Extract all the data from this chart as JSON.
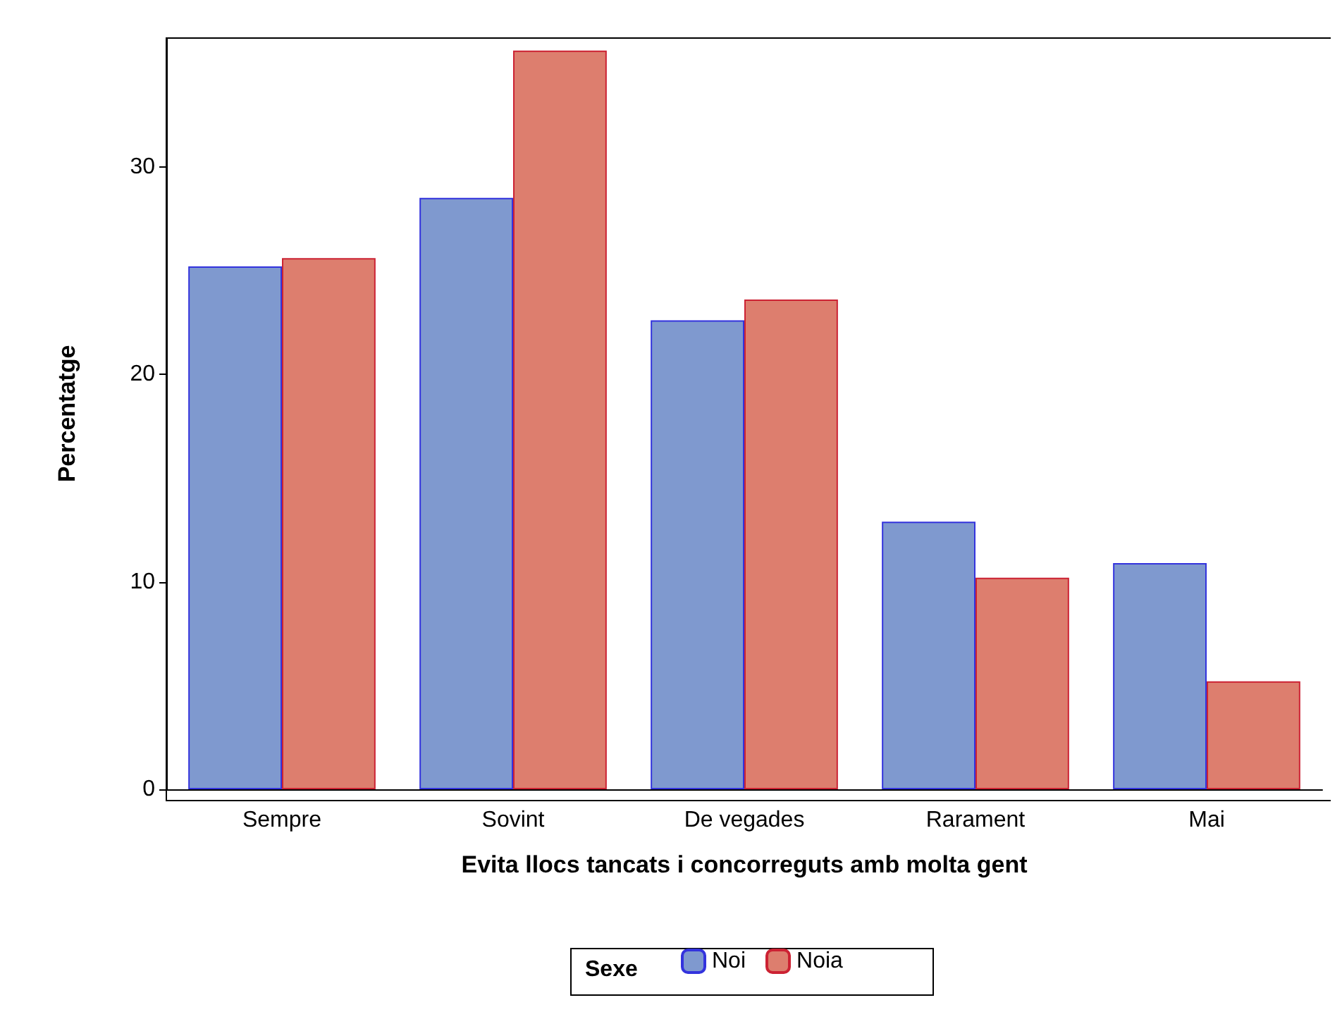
{
  "chart_data": {
    "type": "bar",
    "xlabel": "Evita llocs tancats i concorreguts amb molta gent",
    "ylabel": "Percentatge",
    "categories": [
      "Sempre",
      "Sovint",
      "De vegades",
      "Rarament",
      "Mai"
    ],
    "series": [
      {
        "name": "Noi",
        "color": "#7f99cf",
        "values": [
          25.2,
          28.5,
          22.6,
          12.9,
          10.9
        ]
      },
      {
        "name": "Noia",
        "color": "#dd7e6e",
        "values": [
          25.6,
          35.6,
          23.6,
          10.2,
          5.2
        ]
      }
    ],
    "ylim": [
      0,
      36.2
    ],
    "yticks": [
      0,
      10,
      20,
      30
    ],
    "grid": false,
    "legend": "bottom",
    "legend_title": "Sexe"
  }
}
